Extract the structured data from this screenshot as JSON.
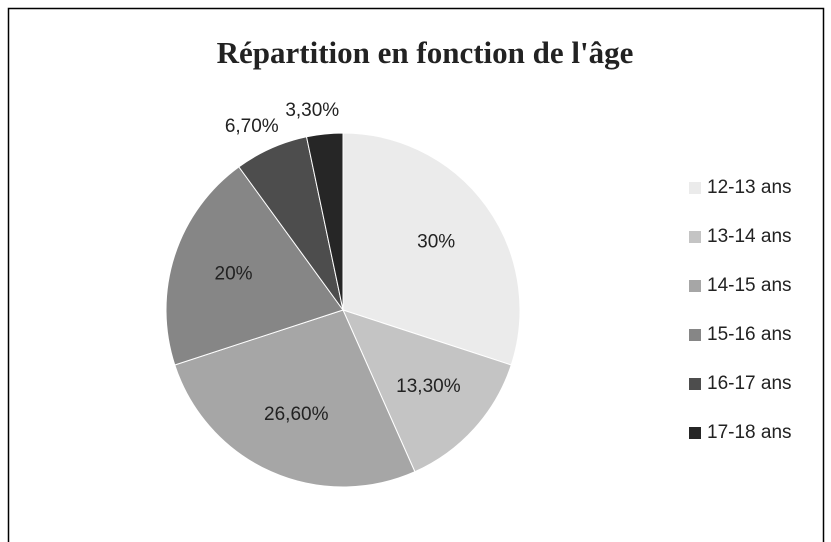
{
  "chart_data": {
    "type": "pie",
    "title": "Répartition en fonction de l'âge",
    "categories": [
      "12-13 ans",
      "13-14 ans",
      "14-15 ans",
      "15-16 ans",
      "16-17 ans",
      "17-18 ans"
    ],
    "values": [
      30,
      13.3,
      26.6,
      20,
      6.7,
      3.3
    ],
    "value_labels": [
      "30%",
      "13,30%",
      "26,60%",
      "20%",
      "6,70%",
      "3,30%"
    ],
    "colors": [
      "#ebebeb",
      "#c4c4c4",
      "#a6a6a6",
      "#868686",
      "#4d4d4d",
      "#262626"
    ],
    "legend": "right"
  }
}
